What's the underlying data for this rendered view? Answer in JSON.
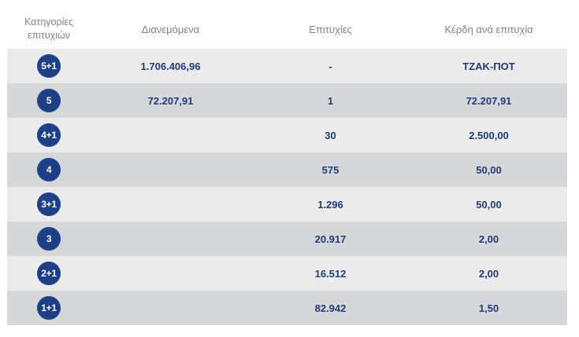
{
  "header": {
    "col1": "Κατηγορίες επιτυχιών",
    "col2": "Διανεμόμενα",
    "col3": "Επιτυχίες",
    "col4": "Κέρδη ανά επιτυχία"
  },
  "rows": [
    {
      "category": "5+1",
      "distributed": "1.706.406,96",
      "winners": "-",
      "prize": "ΤΖΑΚ-ΠΟΤ"
    },
    {
      "category": "5",
      "distributed": "72.207,91",
      "winners": "1",
      "prize": "72.207,91"
    },
    {
      "category": "4+1",
      "distributed": "",
      "winners": "30",
      "prize": "2.500,00"
    },
    {
      "category": "4",
      "distributed": "",
      "winners": "575",
      "prize": "50,00"
    },
    {
      "category": "3+1",
      "distributed": "",
      "winners": "1.296",
      "prize": "50,00"
    },
    {
      "category": "3",
      "distributed": "",
      "winners": "20.917",
      "prize": "2,00"
    },
    {
      "category": "2+1",
      "distributed": "",
      "winners": "16.512",
      "prize": "2,00"
    },
    {
      "category": "1+1",
      "distributed": "",
      "winners": "82.942",
      "prize": "1,50"
    }
  ],
  "colors": {
    "badge": "#1d3f86",
    "text": "#1e3d7a",
    "row_light": "#ebebeb",
    "row_dark": "#d6d7d9",
    "header_text": "#7d8189"
  }
}
